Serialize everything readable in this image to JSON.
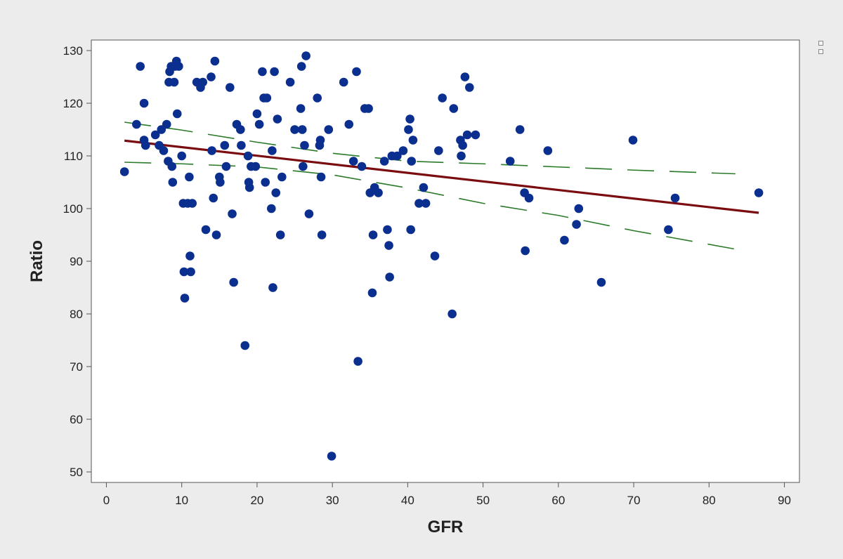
{
  "chart_data": {
    "type": "scatter",
    "title": "",
    "xlabel": "GFR",
    "ylabel": "Ratio",
    "xlim": [
      -2,
      92
    ],
    "ylim": [
      48,
      132
    ],
    "xticks": [
      0,
      10,
      20,
      30,
      40,
      50,
      60,
      70,
      80,
      90
    ],
    "yticks": [
      50,
      60,
      70,
      80,
      90,
      100,
      110,
      120,
      130
    ],
    "grid": false,
    "legend": "none",
    "colors": {
      "points": "#0b2f8f",
      "fit_line": "#7a0c10",
      "confidence_band": "#2a7a2a",
      "prediction_band": "#2a7a2a",
      "plot_background": "#ffffff",
      "page_background": "#ececec"
    },
    "points": [
      [
        2.4,
        107
      ],
      [
        4.0,
        116
      ],
      [
        4.5,
        127
      ],
      [
        5.0,
        113
      ],
      [
        5.2,
        112
      ],
      [
        5.0,
        120
      ],
      [
        6.5,
        114
      ],
      [
        7.0,
        112
      ],
      [
        7.3,
        115
      ],
      [
        7.6,
        111
      ],
      [
        8.0,
        116
      ],
      [
        8.2,
        109
      ],
      [
        8.3,
        124
      ],
      [
        8.4,
        126
      ],
      [
        8.6,
        127
      ],
      [
        8.7,
        108
      ],
      [
        8.8,
        105
      ],
      [
        9.0,
        124
      ],
      [
        9.1,
        127
      ],
      [
        9.3,
        128
      ],
      [
        9.4,
        118
      ],
      [
        9.6,
        127
      ],
      [
        10.0,
        110
      ],
      [
        10.2,
        101
      ],
      [
        10.3,
        88
      ],
      [
        10.4,
        83
      ],
      [
        10.8,
        101
      ],
      [
        11.0,
        106
      ],
      [
        11.1,
        91
      ],
      [
        11.2,
        88
      ],
      [
        11.4,
        101
      ],
      [
        12.0,
        124
      ],
      [
        12.5,
        123
      ],
      [
        12.8,
        124
      ],
      [
        13.2,
        96
      ],
      [
        13.9,
        125
      ],
      [
        14.0,
        111
      ],
      [
        14.2,
        102
      ],
      [
        14.4,
        128
      ],
      [
        14.6,
        95
      ],
      [
        15.0,
        106
      ],
      [
        15.1,
        105
      ],
      [
        15.7,
        112
      ],
      [
        15.9,
        108
      ],
      [
        16.4,
        123
      ],
      [
        16.7,
        99
      ],
      [
        16.9,
        86
      ],
      [
        17.3,
        116
      ],
      [
        17.8,
        115
      ],
      [
        17.9,
        112
      ],
      [
        18.4,
        74
      ],
      [
        18.8,
        110
      ],
      [
        18.9,
        105
      ],
      [
        19.0,
        104
      ],
      [
        19.2,
        108
      ],
      [
        19.8,
        108
      ],
      [
        20.0,
        118
      ],
      [
        20.3,
        116
      ],
      [
        20.7,
        126
      ],
      [
        20.9,
        121
      ],
      [
        21.1,
        105
      ],
      [
        21.3,
        121
      ],
      [
        21.9,
        100
      ],
      [
        22.0,
        111
      ],
      [
        22.1,
        85
      ],
      [
        22.3,
        126
      ],
      [
        22.5,
        103
      ],
      [
        22.7,
        117
      ],
      [
        23.1,
        95
      ],
      [
        23.3,
        106
      ],
      [
        24.4,
        124
      ],
      [
        25.0,
        115
      ],
      [
        25.8,
        119
      ],
      [
        25.9,
        127
      ],
      [
        26.0,
        115
      ],
      [
        26.1,
        108
      ],
      [
        26.3,
        112
      ],
      [
        26.5,
        129
      ],
      [
        26.9,
        99
      ],
      [
        28.0,
        121
      ],
      [
        28.3,
        112
      ],
      [
        28.4,
        113
      ],
      [
        28.5,
        106
      ],
      [
        28.6,
        95
      ],
      [
        29.5,
        115
      ],
      [
        29.9,
        53
      ],
      [
        31.5,
        124
      ],
      [
        32.2,
        116
      ],
      [
        32.8,
        109
      ],
      [
        33.2,
        126
      ],
      [
        33.4,
        71
      ],
      [
        33.9,
        108
      ],
      [
        34.3,
        119
      ],
      [
        34.8,
        119
      ],
      [
        35.0,
        103
      ],
      [
        35.3,
        84
      ],
      [
        35.4,
        95
      ],
      [
        35.6,
        104
      ],
      [
        36.1,
        103
      ],
      [
        36.9,
        109
      ],
      [
        37.3,
        96
      ],
      [
        37.5,
        93
      ],
      [
        37.6,
        87
      ],
      [
        37.9,
        110
      ],
      [
        38.6,
        110
      ],
      [
        39.4,
        111
      ],
      [
        40.1,
        115
      ],
      [
        40.3,
        117
      ],
      [
        40.4,
        96
      ],
      [
        40.5,
        109
      ],
      [
        40.7,
        113
      ],
      [
        41.5,
        101
      ],
      [
        42.1,
        104
      ],
      [
        42.4,
        101
      ],
      [
        43.6,
        91
      ],
      [
        44.1,
        111
      ],
      [
        44.6,
        121
      ],
      [
        45.9,
        80
      ],
      [
        46.1,
        119
      ],
      [
        47.0,
        113
      ],
      [
        47.1,
        110
      ],
      [
        47.3,
        112
      ],
      [
        47.6,
        125
      ],
      [
        47.9,
        114
      ],
      [
        48.2,
        123
      ],
      [
        49.0,
        114
      ],
      [
        53.6,
        109
      ],
      [
        54.9,
        115
      ],
      [
        55.5,
        103
      ],
      [
        55.6,
        92
      ],
      [
        56.1,
        102
      ],
      [
        58.6,
        111
      ],
      [
        60.8,
        94
      ],
      [
        62.4,
        97
      ],
      [
        62.7,
        100
      ],
      [
        65.7,
        86
      ],
      [
        69.9,
        113
      ],
      [
        74.6,
        96
      ],
      [
        75.5,
        102
      ],
      [
        86.6,
        103
      ]
    ],
    "fit_line": {
      "x": [
        2.4,
        86.6
      ],
      "y": [
        112.9,
        99.2
      ]
    },
    "confidence_band": {
      "upper": {
        "x": [
          2.4,
          10,
          20,
          30,
          40,
          50,
          60,
          70,
          83.5
        ],
        "y": [
          116.4,
          114.9,
          112.6,
          110.5,
          109.0,
          108.5,
          107.9,
          107.3,
          106.6
        ]
      },
      "lower": {
        "x": [
          2.4,
          10,
          20,
          30,
          40,
          50,
          60,
          70,
          83.5
        ],
        "y": [
          108.8,
          108.5,
          107.9,
          106.4,
          103.9,
          101.0,
          98.7,
          95.8,
          92.3
        ]
      }
    }
  }
}
